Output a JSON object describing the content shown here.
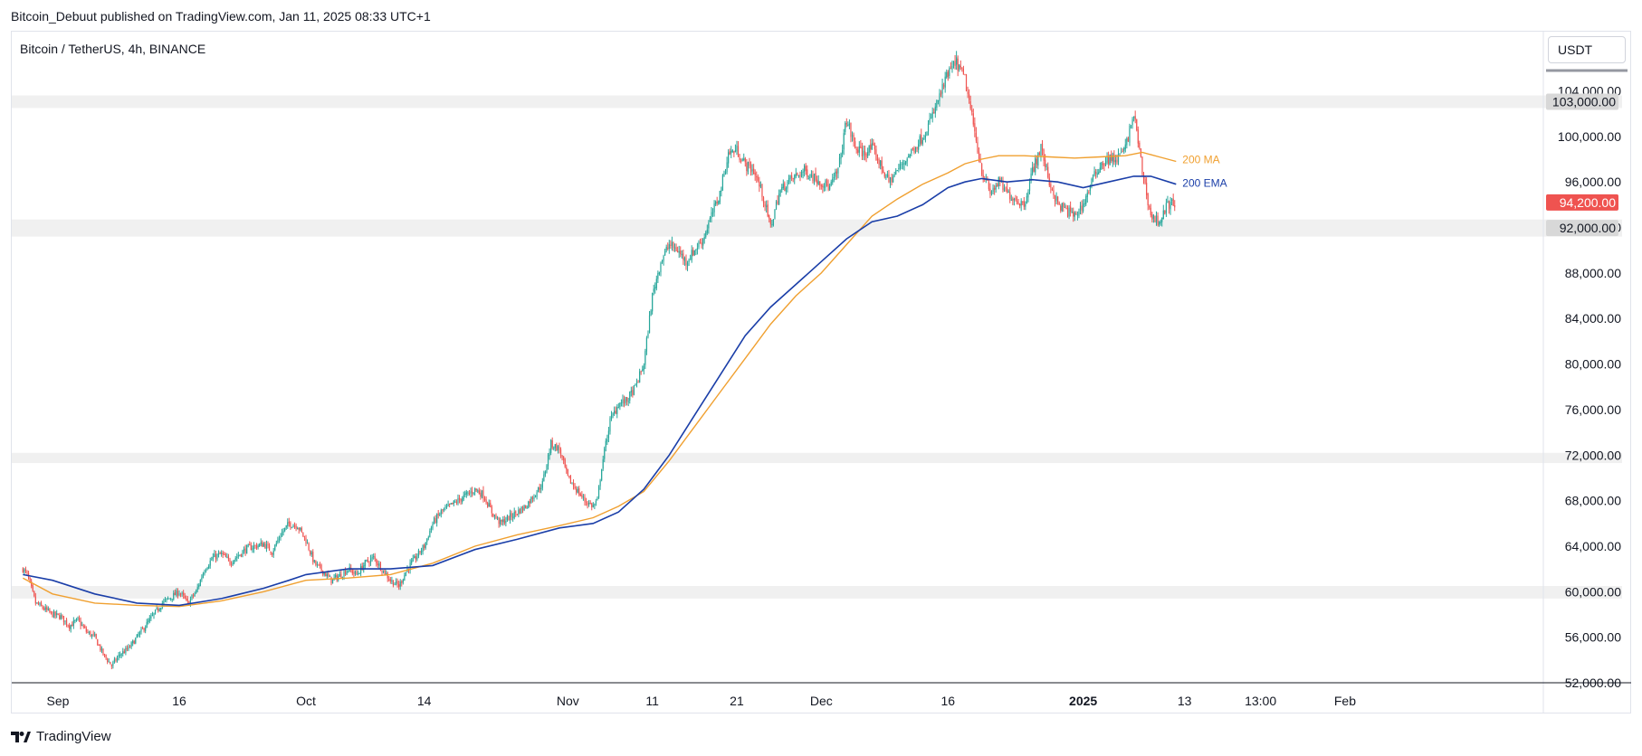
{
  "header": {
    "text": "Bitcoin_Debuut published on TradingView.com, Jan 11, 2025 08:33 UTC+1"
  },
  "symbol": {
    "text": "Bitcoin / TetherUS, 4h, BINANCE"
  },
  "currency_button": "USDT",
  "footer": {
    "brand": "TradingView"
  },
  "colors": {
    "up": "#26a69a",
    "down": "#ef5350",
    "ma": "#f0a030",
    "ema": "#1a3ea8",
    "zone": "#f0f0f0",
    "price_tag": "#ef5350",
    "level_tag": "#d8d8d8"
  },
  "chart_data": {
    "type": "candlestick",
    "title": "Bitcoin / TetherUS, 4h, BINANCE",
    "ylim": [
      49000,
      111000
    ],
    "y_ticks": [
      "52,000.00",
      "56,000.00",
      "60,000.00",
      "64,000.00",
      "68,000.00",
      "72,000.00",
      "76,000.00",
      "80,000.00",
      "84,000.00",
      "88,000.00",
      "92,000.00",
      "96,000.00",
      "100,000.00",
      "104,000.00"
    ],
    "x_ticks": [
      {
        "label": "Sep",
        "day": 0
      },
      {
        "label": "16",
        "day": 15
      },
      {
        "label": "Oct",
        "day": 30
      },
      {
        "label": "14",
        "day": 44
      },
      {
        "label": "Nov",
        "day": 61
      },
      {
        "label": "11",
        "day": 71
      },
      {
        "label": "21",
        "day": 81
      },
      {
        "label": "Dec",
        "day": 91
      },
      {
        "label": "16",
        "day": 106
      },
      {
        "label": "2025",
        "day": 122,
        "bold": true
      },
      {
        "label": "13",
        "day": 134
      },
      {
        "label": "13:00",
        "day": 143
      },
      {
        "label": "Feb",
        "day": 153
      }
    ],
    "price_path": [
      [
        -3.5,
        62000
      ],
      [
        -3,
        61500
      ],
      [
        -2,
        59000
      ],
      [
        -1,
        58500
      ],
      [
        0,
        58000
      ],
      [
        1,
        57800
      ],
      [
        2,
        57000
      ],
      [
        3,
        57500
      ],
      [
        4,
        56500
      ],
      [
        5,
        56000
      ],
      [
        6,
        54500
      ],
      [
        7,
        53500
      ],
      [
        7.5,
        54000
      ],
      [
        8,
        54500
      ],
      [
        9,
        55000
      ],
      [
        10,
        56000
      ],
      [
        11,
        57000
      ],
      [
        12,
        58000
      ],
      [
        13,
        59000
      ],
      [
        14,
        59500
      ],
      [
        15,
        60000
      ],
      [
        16,
        59000
      ],
      [
        17,
        60000
      ],
      [
        18,
        62000
      ],
      [
        19,
        63000
      ],
      [
        20,
        63300
      ],
      [
        21,
        62600
      ],
      [
        22,
        63200
      ],
      [
        23,
        63800
      ],
      [
        24,
        64000
      ],
      [
        25,
        64200
      ],
      [
        26,
        63500
      ],
      [
        27,
        65000
      ],
      [
        28,
        66000
      ],
      [
        29,
        65800
      ],
      [
        30,
        64500
      ],
      [
        31,
        62500
      ],
      [
        32,
        61800
      ],
      [
        33,
        61000
      ],
      [
        34,
        61400
      ],
      [
        35,
        62000
      ],
      [
        36,
        61500
      ],
      [
        37,
        62500
      ],
      [
        38,
        63000
      ],
      [
        39,
        62000
      ],
      [
        40,
        61000
      ],
      [
        41,
        60500
      ],
      [
        42,
        62000
      ],
      [
        43,
        63000
      ],
      [
        44,
        64000
      ],
      [
        45,
        66000
      ],
      [
        46,
        67000
      ],
      [
        47,
        67500
      ],
      [
        48,
        68000
      ],
      [
        49,
        68500
      ],
      [
        50,
        69000
      ],
      [
        51,
        68500
      ],
      [
        52,
        67000
      ],
      [
        53,
        66000
      ],
      [
        54,
        66500
      ],
      [
        55,
        67000
      ],
      [
        56,
        67500
      ],
      [
        57,
        68500
      ],
      [
        58,
        69500
      ],
      [
        59,
        73000
      ],
      [
        60,
        72500
      ],
      [
        61,
        70000
      ],
      [
        62,
        69000
      ],
      [
        63,
        68000
      ],
      [
        64,
        67500
      ],
      [
        64.5,
        68000
      ],
      [
        65,
        71000
      ],
      [
        66,
        75000
      ],
      [
        67,
        76500
      ],
      [
        68,
        76800
      ],
      [
        69,
        78000
      ],
      [
        70,
        80000
      ],
      [
        71,
        86000
      ],
      [
        72,
        89000
      ],
      [
        73,
        90500
      ],
      [
        74,
        90000
      ],
      [
        75,
        89000
      ],
      [
        76,
        90000
      ],
      [
        77,
        91000
      ],
      [
        78,
        93000
      ],
      [
        79,
        95000
      ],
      [
        80,
        98500
      ],
      [
        81,
        98800
      ],
      [
        82,
        97500
      ],
      [
        83,
        97000
      ],
      [
        84,
        95000
      ],
      [
        85,
        92000
      ],
      [
        86,
        95000
      ],
      [
        87,
        96000
      ],
      [
        88,
        96500
      ],
      [
        89,
        97000
      ],
      [
        90,
        96500
      ],
      [
        91,
        96000
      ],
      [
        92,
        95500
      ],
      [
        93,
        97000
      ],
      [
        94,
        101500
      ],
      [
        95,
        99000
      ],
      [
        96,
        98500
      ],
      [
        97,
        99000
      ],
      [
        98,
        97500
      ],
      [
        99,
        96000
      ],
      [
        100,
        97000
      ],
      [
        101,
        98000
      ],
      [
        102,
        99000
      ],
      [
        103,
        100000
      ],
      [
        104,
        101500
      ],
      [
        105,
        103500
      ],
      [
        106,
        105500
      ],
      [
        107,
        106500
      ],
      [
        108,
        105000
      ],
      [
        109,
        101000
      ],
      [
        110,
        97000
      ],
      [
        111,
        95000
      ],
      [
        112,
        96000
      ],
      [
        113,
        95000
      ],
      [
        114,
        94500
      ],
      [
        115,
        94000
      ],
      [
        116,
        97000
      ],
      [
        117,
        99000
      ],
      [
        118,
        96000
      ],
      [
        119,
        94000
      ],
      [
        120,
        93500
      ],
      [
        121,
        93000
      ],
      [
        122,
        94000
      ],
      [
        123,
        96000
      ],
      [
        124,
        97500
      ],
      [
        125,
        98000
      ],
      [
        126,
        98000
      ],
      [
        127,
        99000
      ],
      [
        128,
        102000
      ],
      [
        129,
        97000
      ],
      [
        130,
        93000
      ],
      [
        131,
        92500
      ],
      [
        132,
        94000
      ],
      [
        133,
        94200
      ]
    ],
    "series": [
      {
        "name": "200 MA",
        "points": [
          [
            -3.5,
            61200
          ],
          [
            0,
            59800
          ],
          [
            5,
            59000
          ],
          [
            10,
            58800
          ],
          [
            15,
            58700
          ],
          [
            20,
            59200
          ],
          [
            25,
            60000
          ],
          [
            30,
            61000
          ],
          [
            35,
            61200
          ],
          [
            40,
            61500
          ],
          [
            45,
            62500
          ],
          [
            50,
            64000
          ],
          [
            55,
            65000
          ],
          [
            60,
            65800
          ],
          [
            64,
            66500
          ],
          [
            67,
            67500
          ],
          [
            70,
            68800
          ],
          [
            73,
            71500
          ],
          [
            76,
            74500
          ],
          [
            79,
            77500
          ],
          [
            82,
            80500
          ],
          [
            85,
            83500
          ],
          [
            88,
            86000
          ],
          [
            91,
            88000
          ],
          [
            94,
            90500
          ],
          [
            97,
            93000
          ],
          [
            100,
            94500
          ],
          [
            103,
            95800
          ],
          [
            106,
            96800
          ],
          [
            108,
            97600
          ],
          [
            110,
            98000
          ],
          [
            112,
            98300
          ],
          [
            115,
            98300
          ],
          [
            118,
            98200
          ],
          [
            121,
            98100
          ],
          [
            124,
            98200
          ],
          [
            127,
            98300
          ],
          [
            129,
            98600
          ],
          [
            131,
            98200
          ],
          [
            133,
            97800
          ]
        ]
      },
      {
        "name": "200 EMA",
        "points": [
          [
            -3.5,
            61500
          ],
          [
            0,
            61000
          ],
          [
            5,
            59800
          ],
          [
            10,
            59000
          ],
          [
            15,
            58800
          ],
          [
            20,
            59400
          ],
          [
            25,
            60300
          ],
          [
            28,
            61000
          ],
          [
            30,
            61500
          ],
          [
            35,
            62000
          ],
          [
            40,
            62000
          ],
          [
            45,
            62300
          ],
          [
            50,
            63700
          ],
          [
            55,
            64600
          ],
          [
            60,
            65600
          ],
          [
            64,
            66000
          ],
          [
            67,
            67000
          ],
          [
            70,
            69000
          ],
          [
            73,
            72000
          ],
          [
            76,
            75500
          ],
          [
            79,
            79000
          ],
          [
            82,
            82500
          ],
          [
            85,
            85000
          ],
          [
            88,
            87000
          ],
          [
            91,
            89000
          ],
          [
            94,
            91000
          ],
          [
            97,
            92500
          ],
          [
            100,
            93000
          ],
          [
            103,
            94000
          ],
          [
            106,
            95500
          ],
          [
            108,
            96000
          ],
          [
            110,
            96300
          ],
          [
            113,
            96000
          ],
          [
            116,
            96200
          ],
          [
            119,
            96000
          ],
          [
            122,
            95500
          ],
          [
            125,
            96000
          ],
          [
            128,
            96500
          ],
          [
            130,
            96500
          ],
          [
            133,
            95800
          ]
        ]
      }
    ],
    "zones": [
      {
        "label": "103,000.00",
        "low": 102500,
        "high": 103600
      },
      {
        "label": "92,000.00",
        "low": 91200,
        "high": 92700
      },
      {
        "low": 71300,
        "high": 72200
      },
      {
        "low": 59400,
        "high": 60500
      }
    ],
    "current_price": {
      "label": "94,200.00",
      "value": 94200
    }
  }
}
